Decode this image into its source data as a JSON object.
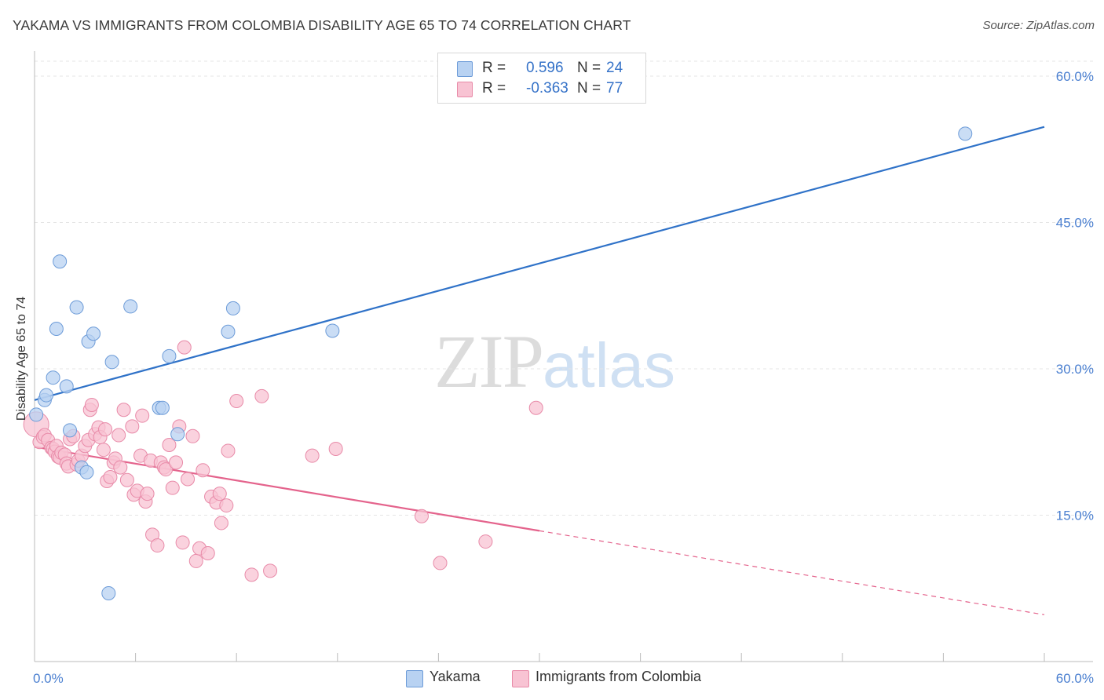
{
  "header": {
    "title": "YAKAMA VS IMMIGRANTS FROM COLOMBIA DISABILITY AGE 65 TO 74 CORRELATION CHART",
    "source": "Source: ZipAtlas.com"
  },
  "watermark": {
    "zip": "ZIP",
    "atlas": "atlas"
  },
  "legend": {
    "rows": [
      {
        "r_label": "R =",
        "r_value": "0.596",
        "n_label": "N =",
        "n_value": "24",
        "color": "#b8d2f2",
        "border": "#6c9bd8"
      },
      {
        "r_label": "R =",
        "r_value": "-0.363",
        "n_label": "N =",
        "n_value": "77",
        "color": "#f8c3d3",
        "border": "#e88aa8"
      }
    ]
  },
  "bottom_legend": [
    {
      "label": "Yakama",
      "color": "#b8d2f2",
      "border": "#6c9bd8"
    },
    {
      "label": "Immigrants from Colombia",
      "color": "#f8c3d3",
      "border": "#e88aa8"
    }
  ],
  "chart_data": {
    "type": "scatter",
    "ylabel": "Disability Age 65 to 74",
    "xlim": [
      0,
      60
    ],
    "ylim": [
      0,
      61.5
    ],
    "x_tick_labels": [
      {
        "value": 0,
        "label": "0.0%"
      },
      {
        "value": 60,
        "label": "60.0%"
      }
    ],
    "y_tick_labels": [
      {
        "value": 15,
        "label": "15.0%"
      },
      {
        "value": 30,
        "label": "30.0%"
      },
      {
        "value": 45,
        "label": "45.0%"
      },
      {
        "value": 60,
        "label": "60.0%"
      }
    ],
    "grid": true,
    "legend_position": "top-center",
    "series": [
      {
        "name": "Yakama",
        "color": "#6c9bd8",
        "fill": "#b8d2f2",
        "line_color": "#2f72c8",
        "trend": {
          "x0": 0,
          "y0": 26.8,
          "x1": 60,
          "y1": 54.8,
          "dashed_from": null
        },
        "points": [
          [
            0.1,
            25.3
          ],
          [
            0.6,
            26.8
          ],
          [
            0.7,
            27.3
          ],
          [
            1.1,
            29.1
          ],
          [
            1.3,
            34.1
          ],
          [
            1.5,
            41.0
          ],
          [
            1.9,
            28.2
          ],
          [
            2.1,
            23.7
          ],
          [
            2.5,
            36.3
          ],
          [
            2.8,
            19.9
          ],
          [
            3.1,
            19.4
          ],
          [
            3.2,
            32.8
          ],
          [
            3.5,
            33.6
          ],
          [
            4.6,
            30.7
          ],
          [
            5.7,
            36.4
          ],
          [
            4.4,
            7.0
          ],
          [
            7.4,
            26.0
          ],
          [
            7.6,
            26.0
          ],
          [
            8.0,
            31.3
          ],
          [
            8.5,
            23.3
          ],
          [
            11.5,
            33.8
          ],
          [
            11.8,
            36.2
          ],
          [
            17.7,
            33.9
          ],
          [
            55.3,
            54.1
          ]
        ]
      },
      {
        "name": "Immigrants from Colombia",
        "color": "#e88aa8",
        "fill": "#f8c3d3",
        "line_color": "#e4638c",
        "trend": {
          "x0": 0,
          "y0": 22.0,
          "x1": 60,
          "y1": 4.8,
          "dashed_from": 30
        },
        "points": [
          [
            0.1,
            24.3
          ],
          [
            0.3,
            22.5
          ],
          [
            0.5,
            23.0
          ],
          [
            0.6,
            23.2
          ],
          [
            0.8,
            22.7
          ],
          [
            1.0,
            21.9
          ],
          [
            1.1,
            21.8
          ],
          [
            1.2,
            21.5
          ],
          [
            1.3,
            22.1
          ],
          [
            1.4,
            21.0
          ],
          [
            1.5,
            20.9
          ],
          [
            1.6,
            21.4
          ],
          [
            1.8,
            21.2
          ],
          [
            1.9,
            20.3
          ],
          [
            2.0,
            20.0
          ],
          [
            2.1,
            22.8
          ],
          [
            2.3,
            23.1
          ],
          [
            2.5,
            20.2
          ],
          [
            2.6,
            20.6
          ],
          [
            2.8,
            21.1
          ],
          [
            3.0,
            22.1
          ],
          [
            3.2,
            22.7
          ],
          [
            3.3,
            25.8
          ],
          [
            3.4,
            26.3
          ],
          [
            3.6,
            23.3
          ],
          [
            3.8,
            24.0
          ],
          [
            3.9,
            23.0
          ],
          [
            4.1,
            21.7
          ],
          [
            4.2,
            23.8
          ],
          [
            4.3,
            18.5
          ],
          [
            4.5,
            18.9
          ],
          [
            4.7,
            20.4
          ],
          [
            4.8,
            20.8
          ],
          [
            5.0,
            23.2
          ],
          [
            5.1,
            19.9
          ],
          [
            5.3,
            25.8
          ],
          [
            5.5,
            18.6
          ],
          [
            5.8,
            24.1
          ],
          [
            5.9,
            17.1
          ],
          [
            6.1,
            17.5
          ],
          [
            6.3,
            21.1
          ],
          [
            6.4,
            25.2
          ],
          [
            6.6,
            16.4
          ],
          [
            6.7,
            17.2
          ],
          [
            6.9,
            20.6
          ],
          [
            7.0,
            13.0
          ],
          [
            7.3,
            11.9
          ],
          [
            7.5,
            20.4
          ],
          [
            7.7,
            19.9
          ],
          [
            7.8,
            19.7
          ],
          [
            8.0,
            22.2
          ],
          [
            8.2,
            17.8
          ],
          [
            8.4,
            20.4
          ],
          [
            8.6,
            24.1
          ],
          [
            8.8,
            12.2
          ],
          [
            8.9,
            32.2
          ],
          [
            9.1,
            18.7
          ],
          [
            9.4,
            23.1
          ],
          [
            9.6,
            10.3
          ],
          [
            9.8,
            11.6
          ],
          [
            10.0,
            19.6
          ],
          [
            10.3,
            11.1
          ],
          [
            10.5,
            16.9
          ],
          [
            10.8,
            16.3
          ],
          [
            11.0,
            17.2
          ],
          [
            11.1,
            14.2
          ],
          [
            11.4,
            16.0
          ],
          [
            11.5,
            21.6
          ],
          [
            12.0,
            26.7
          ],
          [
            12.9,
            8.9
          ],
          [
            13.5,
            27.2
          ],
          [
            14.0,
            9.3
          ],
          [
            16.5,
            21.1
          ],
          [
            17.9,
            21.8
          ],
          [
            23.0,
            14.9
          ],
          [
            24.1,
            10.1
          ],
          [
            26.8,
            12.3
          ],
          [
            29.8,
            26.0
          ]
        ]
      }
    ]
  }
}
